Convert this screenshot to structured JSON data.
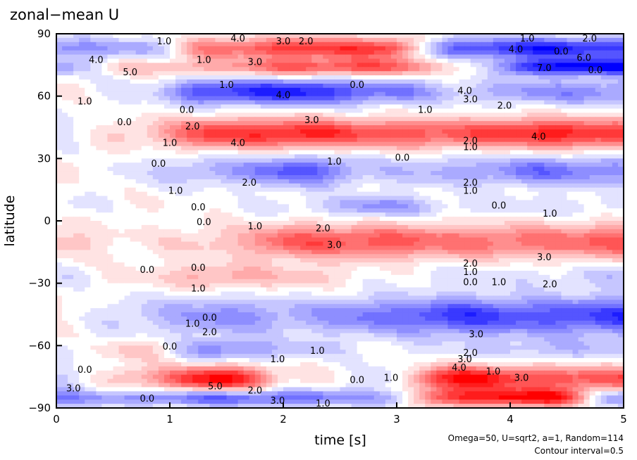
{
  "chart_data": {
    "type": "heatmap",
    "title": "zonal−mean U",
    "xlabel": "time [s]",
    "ylabel": "latitude",
    "xlim": [
      0,
      5
    ],
    "ylim": [
      -90,
      90
    ],
    "xticks": [
      0,
      1,
      2,
      3,
      4,
      5
    ],
    "yticks": [
      -90,
      -60,
      -30,
      0,
      30,
      60,
      90
    ],
    "ytick_labels": [
      "−90",
      "−60",
      "−30",
      "0",
      "30",
      "60",
      "90"
    ],
    "contour_interval": 0.5,
    "colormap": {
      "negative": "#0000ff",
      "zero": "#ffffff",
      "positive": "#ff0000"
    },
    "bands": [
      {
        "lat": 83,
        "width": 5,
        "amps": [
          -2.0,
          -1.5,
          2.5,
          3.5,
          3.5,
          -3.0,
          -4.0,
          -3.5
        ]
      },
      {
        "lat": 74,
        "width": 4,
        "amps": [
          -1.5,
          1.0,
          1.5,
          3.0,
          3.0,
          0.5,
          -4.0,
          -4.5
        ]
      },
      {
        "lat": 62,
        "width": 6,
        "amps": [
          0.2,
          -0.5,
          -3.5,
          -4.0,
          -2.5,
          -1.0,
          -2.0,
          -2.0
        ]
      },
      {
        "lat": 42,
        "width": 7,
        "amps": [
          -0.5,
          1.0,
          3.5,
          4.0,
          3.0,
          3.0,
          4.0,
          3.5
        ]
      },
      {
        "lat": 24,
        "width": 7,
        "amps": [
          0.5,
          -0.5,
          -1.5,
          -3.0,
          -1.0,
          -1.5,
          -2.5,
          -2.0
        ]
      },
      {
        "lat": 7,
        "width": 5,
        "amps": [
          -0.5,
          0.2,
          0.0,
          -0.5,
          -2.0,
          -0.5,
          -0.5,
          -0.5
        ]
      },
      {
        "lat": -10,
        "width": 8,
        "amps": [
          1.0,
          0.3,
          1.0,
          3.0,
          3.0,
          2.5,
          2.5,
          3.0
        ]
      },
      {
        "lat": -27,
        "width": 6,
        "amps": [
          -0.5,
          0.5,
          1.5,
          1.0,
          0.0,
          -0.5,
          -0.5,
          -1.0
        ]
      },
      {
        "lat": -46,
        "width": 9,
        "amps": [
          0.3,
          -1.0,
          -2.0,
          -1.5,
          -2.5,
          -3.5,
          -3.0,
          -3.5
        ]
      },
      {
        "lat": -62,
        "width": 5,
        "amps": [
          -0.5,
          1.0,
          -2.0,
          -1.0,
          0.0,
          -0.5,
          -1.0,
          -1.0
        ]
      },
      {
        "lat": -76,
        "width": 6,
        "amps": [
          -1.0,
          1.5,
          4.5,
          0.5,
          -0.5,
          4.5,
          3.0,
          3.0
        ]
      },
      {
        "lat": -85,
        "width": 4,
        "amps": [
          -2.0,
          -2.0,
          -3.0,
          -2.5,
          -1.5,
          3.5,
          4.5,
          -2.0
        ]
      }
    ],
    "annotations": [
      {
        "t": 0.95,
        "lat": 85,
        "text": "1.0"
      },
      {
        "t": 1.6,
        "lat": 87,
        "text": "4.0"
      },
      {
        "t": 2.0,
        "lat": 85,
        "text": "3.0"
      },
      {
        "t": 2.2,
        "lat": 85,
        "text": "2.0"
      },
      {
        "t": 0.35,
        "lat": 76,
        "text": "4.0"
      },
      {
        "t": 0.65,
        "lat": 70,
        "text": "5.0"
      },
      {
        "t": 1.3,
        "lat": 76,
        "text": "1.0"
      },
      {
        "t": 1.75,
        "lat": 75,
        "text": "3.0"
      },
      {
        "t": 1.5,
        "lat": 64,
        "text": "1.0"
      },
      {
        "t": 2.65,
        "lat": 64,
        "text": "0.0"
      },
      {
        "t": 4.15,
        "lat": 89,
        "text": "1.0"
      },
      {
        "t": 4.7,
        "lat": 89,
        "text": "2.0"
      },
      {
        "t": 4.05,
        "lat": 81,
        "text": "4.0"
      },
      {
        "t": 4.45,
        "lat": 80,
        "text": "0.0"
      },
      {
        "t": 4.65,
        "lat": 77,
        "text": "6.0"
      },
      {
        "t": 4.3,
        "lat": 72,
        "text": "7.0"
      },
      {
        "t": 4.75,
        "lat": 71,
        "text": "0.0"
      },
      {
        "t": 3.6,
        "lat": 61,
        "text": "4.0"
      },
      {
        "t": 3.65,
        "lat": 57,
        "text": "3.0"
      },
      {
        "t": 3.95,
        "lat": 54,
        "text": "2.0"
      },
      {
        "t": 2.0,
        "lat": 59,
        "text": "4.0"
      },
      {
        "t": 0.25,
        "lat": 56,
        "text": "1.0"
      },
      {
        "t": 1.15,
        "lat": 52,
        "text": "0.0"
      },
      {
        "t": 0.6,
        "lat": 46,
        "text": "0.0"
      },
      {
        "t": 1.2,
        "lat": 44,
        "text": "2.0"
      },
      {
        "t": 2.25,
        "lat": 47,
        "text": "3.0"
      },
      {
        "t": 3.25,
        "lat": 52,
        "text": "1.0"
      },
      {
        "t": 1.6,
        "lat": 36,
        "text": "4.0"
      },
      {
        "t": 1.0,
        "lat": 36,
        "text": "1.0"
      },
      {
        "t": 3.65,
        "lat": 37,
        "text": "2.0"
      },
      {
        "t": 3.65,
        "lat": 34,
        "text": "1.0"
      },
      {
        "t": 4.25,
        "lat": 39,
        "text": "4.0"
      },
      {
        "t": 0.9,
        "lat": 26,
        "text": "0.0"
      },
      {
        "t": 2.45,
        "lat": 27,
        "text": "1.0"
      },
      {
        "t": 3.05,
        "lat": 29,
        "text": "0.0"
      },
      {
        "t": 1.7,
        "lat": 17,
        "text": "2.0"
      },
      {
        "t": 1.05,
        "lat": 13,
        "text": "1.0"
      },
      {
        "t": 3.65,
        "lat": 17,
        "text": "2.0"
      },
      {
        "t": 3.65,
        "lat": 13,
        "text": "1.0"
      },
      {
        "t": 1.25,
        "lat": 5,
        "text": "0.0"
      },
      {
        "t": 1.3,
        "lat": -2,
        "text": "0.0"
      },
      {
        "t": 1.75,
        "lat": -4,
        "text": "1.0"
      },
      {
        "t": 2.35,
        "lat": -5,
        "text": "2.0"
      },
      {
        "t": 2.45,
        "lat": -13,
        "text": "3.0"
      },
      {
        "t": 3.9,
        "lat": 6,
        "text": "0.0"
      },
      {
        "t": 4.35,
        "lat": 2,
        "text": "1.0"
      },
      {
        "t": 4.3,
        "lat": -19,
        "text": "3.0"
      },
      {
        "t": 3.65,
        "lat": -22,
        "text": "2.0"
      },
      {
        "t": 3.65,
        "lat": -26,
        "text": "1.0"
      },
      {
        "t": 0.8,
        "lat": -25,
        "text": "0.0"
      },
      {
        "t": 1.25,
        "lat": -24,
        "text": "0.0"
      },
      {
        "t": 1.25,
        "lat": -34,
        "text": "1.0"
      },
      {
        "t": 3.65,
        "lat": -31,
        "text": "0.0"
      },
      {
        "t": 3.9,
        "lat": -31,
        "text": "1.0"
      },
      {
        "t": 4.35,
        "lat": -32,
        "text": "2.0"
      },
      {
        "t": 1.35,
        "lat": -48,
        "text": "0.0"
      },
      {
        "t": 1.2,
        "lat": -51,
        "text": "1.0"
      },
      {
        "t": 1.35,
        "lat": -55,
        "text": "2.0"
      },
      {
        "t": 3.7,
        "lat": -56,
        "text": "3.0"
      },
      {
        "t": 2.3,
        "lat": -64,
        "text": "1.0"
      },
      {
        "t": 1.0,
        "lat": -62,
        "text": "0.0"
      },
      {
        "t": 1.95,
        "lat": -68,
        "text": "1.0"
      },
      {
        "t": 0.25,
        "lat": -73,
        "text": "0.0"
      },
      {
        "t": 3.65,
        "lat": -65,
        "text": "2.0"
      },
      {
        "t": 3.6,
        "lat": -68,
        "text": "3.0"
      },
      {
        "t": 3.55,
        "lat": -72,
        "text": "4.0"
      },
      {
        "t": 3.85,
        "lat": -74,
        "text": "1.0"
      },
      {
        "t": 2.65,
        "lat": -78,
        "text": "0.0"
      },
      {
        "t": 2.95,
        "lat": -77,
        "text": "1.0"
      },
      {
        "t": 4.1,
        "lat": -77,
        "text": "3.0"
      },
      {
        "t": 1.4,
        "lat": -81,
        "text": "5.0"
      },
      {
        "t": 1.75,
        "lat": -83,
        "text": "2.0"
      },
      {
        "t": 0.15,
        "lat": -82,
        "text": "3.0"
      },
      {
        "t": 0.8,
        "lat": -87,
        "text": "0.0"
      },
      {
        "t": 1.95,
        "lat": -88,
        "text": "3.0"
      },
      {
        "t": 2.35,
        "lat": -92,
        "text": "1.0"
      }
    ]
  },
  "footnote": {
    "params": "Omega=50, U=sqrt2, a=1, Random=114",
    "interval": "Contour interval=0.5"
  }
}
